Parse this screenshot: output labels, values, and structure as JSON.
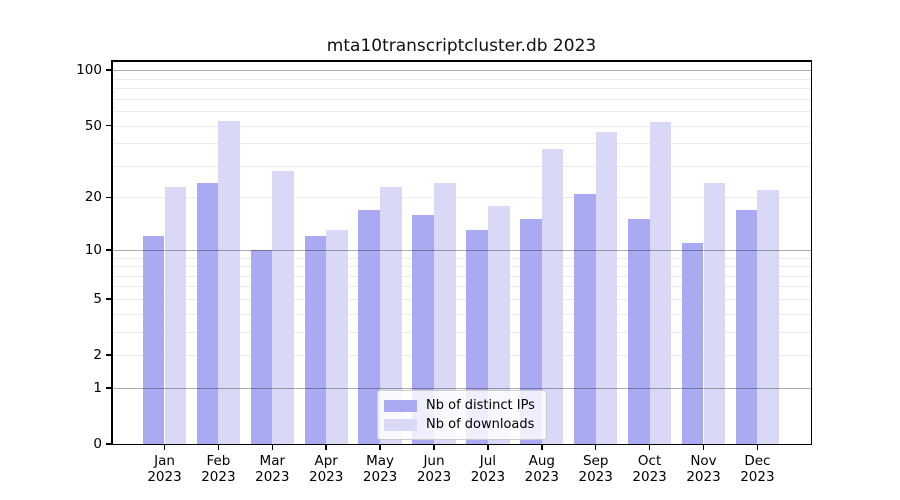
{
  "chart_data": {
    "type": "bar",
    "title": "mta10transcriptcluster.db 2023",
    "categories": [
      "Jan",
      "Feb",
      "Mar",
      "Apr",
      "May",
      "Jun",
      "Jul",
      "Aug",
      "Sep",
      "Oct",
      "Nov",
      "Dec"
    ],
    "category_year": "2023",
    "series": [
      {
        "name": "Nb of distinct IPs",
        "color": "#aaaaf2",
        "values": [
          12,
          24,
          10,
          12,
          17,
          16,
          13,
          15,
          21,
          15,
          11,
          17
        ]
      },
      {
        "name": "Nb of downloads",
        "color": "#d9d9f7",
        "values": [
          23,
          53,
          28,
          13,
          23,
          24,
          18,
          37,
          46,
          52,
          24,
          22
        ]
      }
    ],
    "xlabel": "",
    "ylabel": "",
    "y_axis": {
      "scale": "log1p",
      "tick_labels": [
        0,
        1,
        2,
        5,
        10,
        20,
        50,
        100
      ],
      "major_gridlines": [
        1,
        10,
        100
      ],
      "minor_gridlines": [
        2,
        3,
        4,
        5,
        6,
        7,
        8,
        9,
        20,
        30,
        40,
        50,
        60,
        70,
        80,
        90
      ],
      "ylim": [
        0,
        113
      ]
    },
    "legend": {
      "position": "bottom-center"
    },
    "colors": {
      "background": "#ffffff",
      "axis": "#000000",
      "major_grid": "#b0b0b0",
      "minor_grid": "#ebebeb"
    }
  }
}
